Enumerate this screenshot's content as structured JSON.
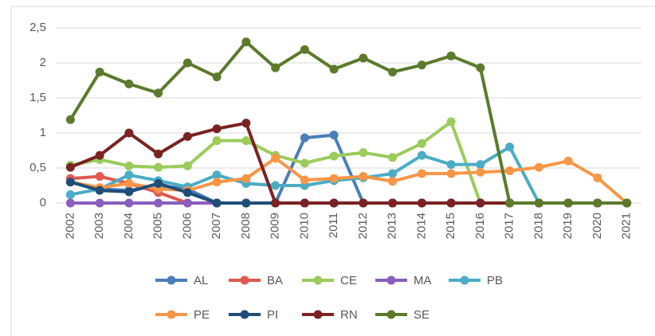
{
  "chart_data": {
    "type": "line",
    "categories": [
      "2002",
      "2003",
      "2004",
      "2005",
      "2006",
      "2007",
      "2008",
      "2009",
      "2010",
      "2011",
      "2012",
      "2013",
      "2014",
      "2015",
      "2016",
      "2017",
      "2018",
      "2019",
      "2020",
      "2021"
    ],
    "series": [
      {
        "name": "AL",
        "color": "#4a7ebb",
        "values": [
          0.3,
          0.2,
          0.18,
          0.25,
          0.2,
          0,
          0,
          0,
          0.93,
          0.97,
          0,
          0,
          0,
          0,
          0,
          0,
          0,
          0,
          0,
          0
        ]
      },
      {
        "name": "BA",
        "color": "#e0584f",
        "values": [
          0.35,
          0.38,
          0.28,
          0.15,
          0,
          0,
          0,
          0,
          0,
          0,
          0,
          0,
          0,
          0,
          0,
          0,
          0,
          0,
          0,
          0
        ]
      },
      {
        "name": "CE",
        "color": "#9bcb5b",
        "values": [
          0.54,
          0.62,
          0.53,
          0.51,
          0.53,
          0.89,
          0.89,
          0.68,
          0.57,
          0.67,
          0.72,
          0.65,
          0.85,
          1.16,
          0,
          0,
          0,
          0,
          0,
          0
        ]
      },
      {
        "name": "MA",
        "color": "#8a5ebf",
        "values": [
          0,
          0,
          0,
          0,
          0,
          0,
          0,
          0,
          0,
          0,
          0,
          0,
          0,
          0,
          0,
          0,
          0,
          0,
          0,
          0
        ]
      },
      {
        "name": "PB",
        "color": "#4bacc6",
        "values": [
          0.12,
          0.2,
          0.4,
          0.32,
          0.23,
          0.4,
          0.28,
          0.25,
          0.25,
          0.32,
          0.36,
          0.42,
          0.68,
          0.55,
          0.55,
          0.8,
          0,
          0,
          0,
          0
        ]
      },
      {
        "name": "PE",
        "color": "#f79646",
        "values": [
          0.3,
          0.22,
          0.28,
          0.2,
          0.18,
          0.3,
          0.35,
          0.64,
          0.33,
          0.35,
          0.38,
          0.31,
          0.42,
          0.42,
          0.44,
          0.46,
          0.51,
          0.6,
          0.36,
          0
        ]
      },
      {
        "name": "PI",
        "color": "#1f4e79",
        "values": [
          0.3,
          0.18,
          0.16,
          0.28,
          0.15,
          0,
          0,
          0,
          0,
          0,
          0,
          0,
          0,
          0,
          0,
          0,
          0,
          0,
          0,
          0
        ]
      },
      {
        "name": "RN",
        "color": "#7b2222",
        "values": [
          0.51,
          0.68,
          1.0,
          0.7,
          0.95,
          1.06,
          1.14,
          0,
          0,
          0,
          0,
          0,
          0,
          0,
          0,
          0,
          0,
          0,
          0,
          0
        ]
      },
      {
        "name": "SE",
        "color": "#5b7a2b",
        "values": [
          1.19,
          1.87,
          1.7,
          1.57,
          2.0,
          1.8,
          2.3,
          1.93,
          2.19,
          1.91,
          2.07,
          1.87,
          1.97,
          2.1,
          1.93,
          0,
          0,
          0,
          0,
          0
        ]
      }
    ],
    "ylim": [
      0,
      2.5
    ],
    "yticks": [
      0,
      {
        "value": 0.5,
        "label": "0,5"
      },
      1,
      {
        "value": 1.5,
        "label": "1,5"
      },
      2,
      {
        "value": 2.5,
        "label": "2,5"
      }
    ],
    "grid": true
  }
}
